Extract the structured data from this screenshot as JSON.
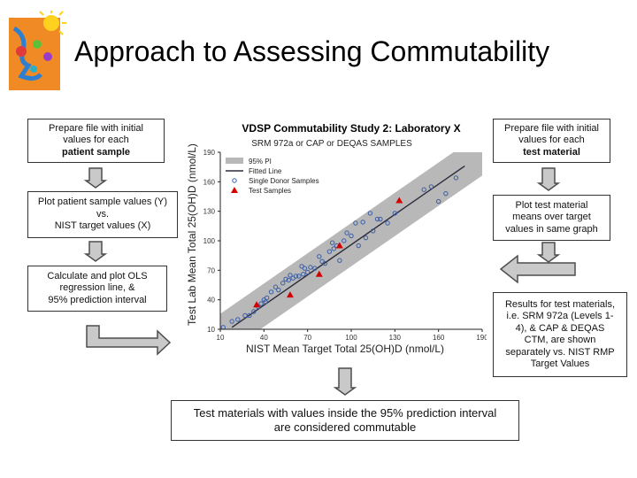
{
  "title": "Approach to Assessing Commutability",
  "left_steps": [
    {
      "lines": [
        "Prepare file with initial",
        "values for each"
      ],
      "bold": "patient sample"
    },
    {
      "lines": [
        "Plot patient sample values (Y)",
        "vs.",
        "NIST target values (X)"
      ]
    },
    {
      "lines": [
        "Calculate and plot OLS",
        "regression line, &",
        "95% prediction interval"
      ]
    }
  ],
  "right_steps": [
    {
      "lines": [
        "Prepare file with initial",
        "values for each"
      ],
      "bold": "test material"
    },
    {
      "lines": [
        "Plot test material",
        "means over target",
        "values in same graph"
      ]
    },
    {
      "lines": [
        "Results for test materials,",
        "i.e. SRM 972a (Levels 1-",
        "4), &  CAP & DEQAS",
        "CTM, are shown",
        "separately vs. NIST RMP",
        "Target Values"
      ]
    }
  ],
  "bottom_box": {
    "lines": [
      "Test materials with values inside the 95% prediction interval",
      "are considered commutable"
    ]
  },
  "colors": {
    "arrow_fill": "#c9c9c9",
    "arrow_stroke": "#4d4d4d",
    "band": "#b8b8b8",
    "points": "#3a5ea8",
    "test": "#d40000"
  },
  "chart_data": {
    "type": "scatter",
    "title": "VDSP Commutability Study 2: Laboratory X",
    "subtitle": "SRM 972a or CAP or DEQAS SAMPLES",
    "xlabel": "NIST Mean Target Total 25(OH)D (nmol/L)",
    "ylabel": "Test Lab Mean Total 25(OH)D (nmol/L)",
    "xlim": [
      10,
      190
    ],
    "ylim": [
      10,
      190
    ],
    "xticks": [
      10,
      40,
      70,
      100,
      130,
      160,
      190
    ],
    "yticks": [
      10,
      40,
      70,
      100,
      130,
      160,
      190
    ],
    "legend": {
      "placement": "top-left",
      "entries": [
        "95% PI",
        "Fitted Line",
        "Single Donor Samples",
        "Test Samples"
      ]
    },
    "fitted_line": {
      "x": [
        18,
        178
      ],
      "y": [
        12,
        176
      ]
    },
    "prediction_interval_halfwidth": 22,
    "series": [
      {
        "name": "Single Donor Samples",
        "x": [
          12,
          18,
          22,
          27,
          30,
          33,
          36,
          38,
          40,
          41,
          42,
          45,
          48,
          50,
          53,
          55,
          57,
          58,
          60,
          62,
          64,
          66,
          67,
          68,
          70,
          72,
          75,
          78,
          80,
          82,
          85,
          87,
          88,
          90,
          92,
          95,
          97,
          100,
          103,
          105,
          108,
          110,
          113,
          115,
          118,
          120,
          125,
          130,
          150,
          155,
          160,
          165,
          172
        ],
        "y": [
          12,
          18,
          20,
          24,
          24,
          28,
          33,
          36,
          40,
          38,
          42,
          48,
          53,
          50,
          57,
          61,
          60,
          65,
          62,
          64,
          64,
          74,
          66,
          72,
          68,
          73,
          72,
          84,
          79,
          77,
          89,
          98,
          92,
          95,
          80,
          100,
          108,
          105,
          118,
          95,
          119,
          103,
          128,
          110,
          122,
          122,
          118,
          128,
          152,
          155,
          140,
          148,
          164
        ]
      },
      {
        "name": "Test Samples",
        "x": [
          35,
          58,
          78,
          92,
          133
        ],
        "y": [
          35,
          45,
          66,
          95,
          141
        ]
      }
    ]
  }
}
